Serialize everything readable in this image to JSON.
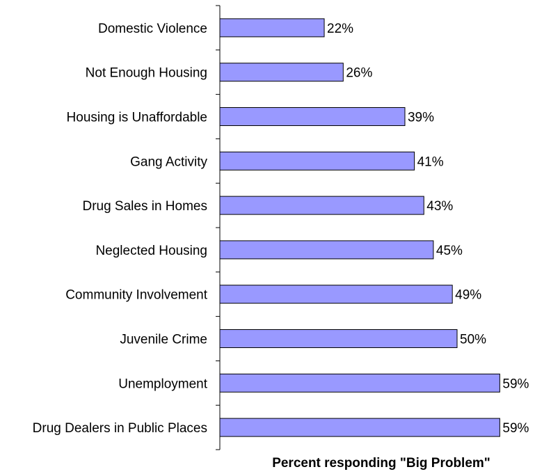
{
  "chart_data": {
    "type": "bar",
    "orientation": "horizontal",
    "categories": [
      "Domestic Violence",
      "Not Enough Housing",
      "Housing is Unaffordable",
      "Gang Activity",
      "Drug Sales in Homes",
      "Neglected Housing",
      "Community Involvement",
      "Juvenile Crime",
      "Unemployment",
      "Drug Dealers in Public Places"
    ],
    "values": [
      22,
      26,
      39,
      41,
      43,
      45,
      49,
      50,
      59,
      59
    ],
    "value_labels": [
      "22%",
      "26%",
      "39%",
      "41%",
      "43%",
      "45%",
      "49%",
      "50%",
      "59%",
      "59%"
    ],
    "title": "",
    "xlabel": "Percent responding \"Big Problem\"",
    "ylabel": "",
    "xlim": [
      0,
      60
    ],
    "grid": false,
    "legend": "none",
    "colors": {
      "bar": "#9999ff",
      "bar_edge": "#000000",
      "axis": "#000000"
    }
  }
}
